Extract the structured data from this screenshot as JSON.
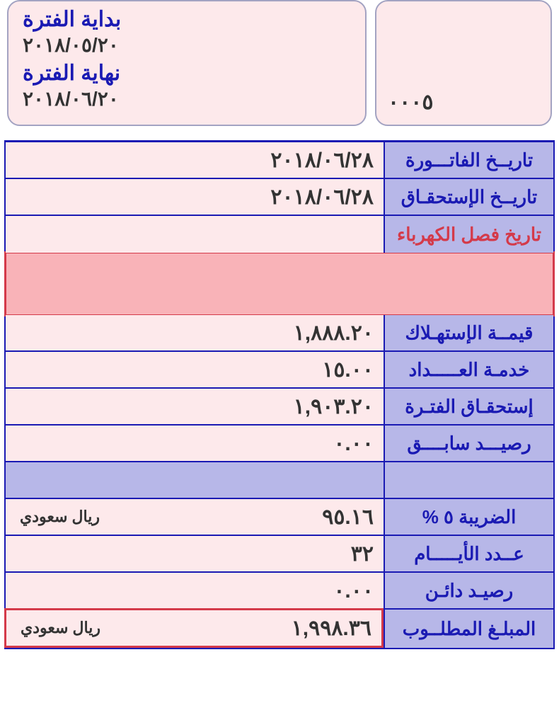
{
  "colors": {
    "blue_border": "#1a1ab3",
    "blue_text": "#1a1ab3",
    "purple_bg": "#b7b7e8",
    "pink_bg": "#fde9eb",
    "red_accent": "#d43a4a",
    "red_bg": "#f9b3b8",
    "gray_border": "#a3a3c2",
    "dark_text": "#333333"
  },
  "period": {
    "start_label": "بداية الفترة",
    "start_date": "٢٠١٨/٠٥/٢٠",
    "end_label": "نهاية الفترة",
    "end_date": "٢٠١٨/٠٦/٢٠"
  },
  "code": "٠٠٠٥",
  "rows": {
    "invoice_date": {
      "label": "تاريــخ الفاتـــورة",
      "value": "٢٠١٨/٠٦/٢٨"
    },
    "due_date": {
      "label": "تاريــخ الإستحقـاق",
      "value": "٢٠١٨/٠٦/٢٨"
    },
    "cutoff_date": {
      "label": "تاريخ فصل الكهرباء",
      "value": ""
    },
    "consumption": {
      "label": "قيمــة الإستهـلاك",
      "value": "١,٨٨٨.٢٠"
    },
    "meter_service": {
      "label": "خدمـة العـــــداد",
      "value": "١٥.٠٠"
    },
    "period_due": {
      "label": "إستحقـاق الفتـرة",
      "value": "١,٩٠٣.٢٠"
    },
    "prev_balance": {
      "label": "رصيـــد سابــــق",
      "value": "٠.٠٠"
    },
    "tax": {
      "label": "الضريبة ٥ %",
      "value": "٩٥.١٦",
      "currency": "ريال سعودي"
    },
    "days": {
      "label": "عــدد الأيـــــام",
      "value": "٣٢"
    },
    "credit": {
      "label": "رصيـد دائـن",
      "value": "٠.٠٠"
    },
    "total": {
      "label": "المبلـغ المطلــوب",
      "value": "١,٩٩٨.٣٦",
      "currency": "ريال سعودي"
    }
  }
}
